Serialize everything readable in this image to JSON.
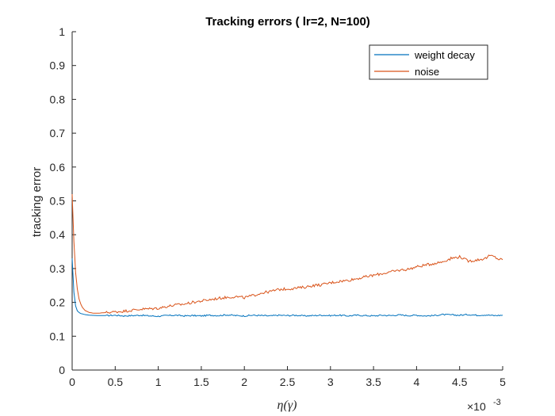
{
  "chart_data": {
    "type": "line",
    "title": "Tracking errors ( lr=2, N=100)",
    "xlabel": "η(γ)",
    "ylabel": "tracking error",
    "x_exponent": "×10",
    "x_exponent_power": "-3",
    "xlim": [
      0,
      5
    ],
    "ylim": [
      0,
      1
    ],
    "xticks": [
      "0",
      "0.5",
      "1",
      "1.5",
      "2",
      "2.5",
      "3",
      "3.5",
      "4",
      "4.5",
      "5"
    ],
    "yticks": [
      "0",
      "0.1",
      "0.2",
      "0.3",
      "0.4",
      "0.5",
      "0.6",
      "0.7",
      "0.8",
      "0.9",
      "1"
    ],
    "grid": false,
    "legend_position": "top-right",
    "series": [
      {
        "name": "weight decay",
        "color": "#0072BD",
        "x": [
          0,
          0.02,
          0.04,
          0.06,
          0.08,
          0.1,
          0.15,
          0.2,
          0.3,
          0.4,
          0.5,
          0.6,
          0.7,
          0.8,
          0.9,
          1.0,
          1.1,
          1.2,
          1.3,
          1.4,
          1.5,
          1.6,
          1.7,
          1.8,
          1.9,
          2.0,
          2.1,
          2.2,
          2.3,
          2.4,
          2.5,
          2.6,
          2.7,
          2.8,
          2.9,
          3.0,
          3.1,
          3.2,
          3.3,
          3.4,
          3.5,
          3.6,
          3.7,
          3.8,
          3.9,
          4.0,
          4.1,
          4.2,
          4.3,
          4.4,
          4.5,
          4.6,
          4.7,
          4.8,
          4.9,
          5.0
        ],
        "y": [
          0.33,
          0.23,
          0.19,
          0.175,
          0.17,
          0.167,
          0.164,
          0.162,
          0.161,
          0.161,
          0.162,
          0.16,
          0.161,
          0.162,
          0.16,
          0.159,
          0.161,
          0.162,
          0.16,
          0.161,
          0.16,
          0.162,
          0.161,
          0.163,
          0.161,
          0.16,
          0.162,
          0.161,
          0.16,
          0.162,
          0.161,
          0.162,
          0.16,
          0.161,
          0.162,
          0.161,
          0.162,
          0.16,
          0.162,
          0.161,
          0.16,
          0.162,
          0.161,
          0.163,
          0.161,
          0.162,
          0.16,
          0.161,
          0.164,
          0.163,
          0.162,
          0.164,
          0.162,
          0.163,
          0.161,
          0.162
        ]
      },
      {
        "name": "noise",
        "color": "#D95319",
        "x": [
          0,
          0.02,
          0.04,
          0.06,
          0.08,
          0.1,
          0.12,
          0.15,
          0.2,
          0.25,
          0.3,
          0.4,
          0.5,
          0.6,
          0.7,
          0.8,
          0.9,
          1.0,
          1.1,
          1.2,
          1.3,
          1.4,
          1.5,
          1.6,
          1.7,
          1.8,
          1.9,
          2.0,
          2.1,
          2.2,
          2.3,
          2.4,
          2.5,
          2.6,
          2.7,
          2.8,
          2.9,
          3.0,
          3.1,
          3.2,
          3.3,
          3.4,
          3.5,
          3.6,
          3.7,
          3.8,
          3.9,
          4.0,
          4.1,
          4.2,
          4.3,
          4.4,
          4.5,
          4.6,
          4.7,
          4.8,
          4.85,
          4.9,
          4.95,
          5.0
        ],
        "y": [
          0.52,
          0.38,
          0.29,
          0.24,
          0.21,
          0.195,
          0.185,
          0.176,
          0.17,
          0.168,
          0.168,
          0.17,
          0.172,
          0.174,
          0.177,
          0.18,
          0.181,
          0.183,
          0.188,
          0.192,
          0.195,
          0.2,
          0.204,
          0.208,
          0.212,
          0.215,
          0.217,
          0.214,
          0.22,
          0.228,
          0.232,
          0.238,
          0.24,
          0.242,
          0.245,
          0.25,
          0.252,
          0.258,
          0.262,
          0.265,
          0.27,
          0.275,
          0.28,
          0.285,
          0.29,
          0.295,
          0.298,
          0.305,
          0.31,
          0.315,
          0.32,
          0.33,
          0.335,
          0.322,
          0.325,
          0.33,
          0.338,
          0.335,
          0.328,
          0.326
        ]
      }
    ]
  }
}
